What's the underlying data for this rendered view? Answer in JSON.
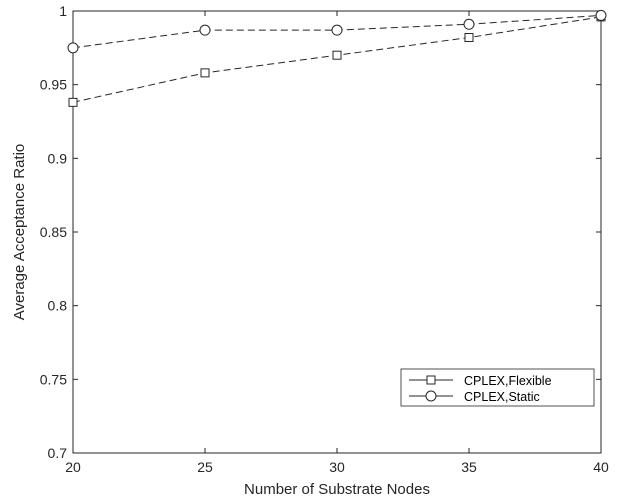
{
  "chart_data": {
    "type": "line",
    "title": "",
    "xlabel": "Number of Substrate Nodes",
    "ylabel": "Average Acceptance Ratio",
    "x": [
      20,
      25,
      30,
      35,
      40
    ],
    "x_tick_labels": [
      "20",
      "25",
      "30",
      "35",
      "40"
    ],
    "y_tick_labels": [
      "0.7",
      "0.75",
      "0.8",
      "0.85",
      "0.9",
      "0.95",
      "1"
    ],
    "xlim": [
      20,
      40
    ],
    "ylim": [
      0.7,
      1.0
    ],
    "grid": false,
    "legend_position": "bottom-right",
    "series": [
      {
        "name": "CPLEX,Flexible",
        "marker": "square",
        "line_style": "dashed",
        "color": "#262626",
        "values": [
          0.938,
          0.958,
          0.97,
          0.982,
          0.996
        ]
      },
      {
        "name": "CPLEX,Static",
        "marker": "circle",
        "line_style": "dashed",
        "color": "#262626",
        "values": [
          0.975,
          0.987,
          0.987,
          0.991,
          0.997
        ]
      }
    ]
  }
}
